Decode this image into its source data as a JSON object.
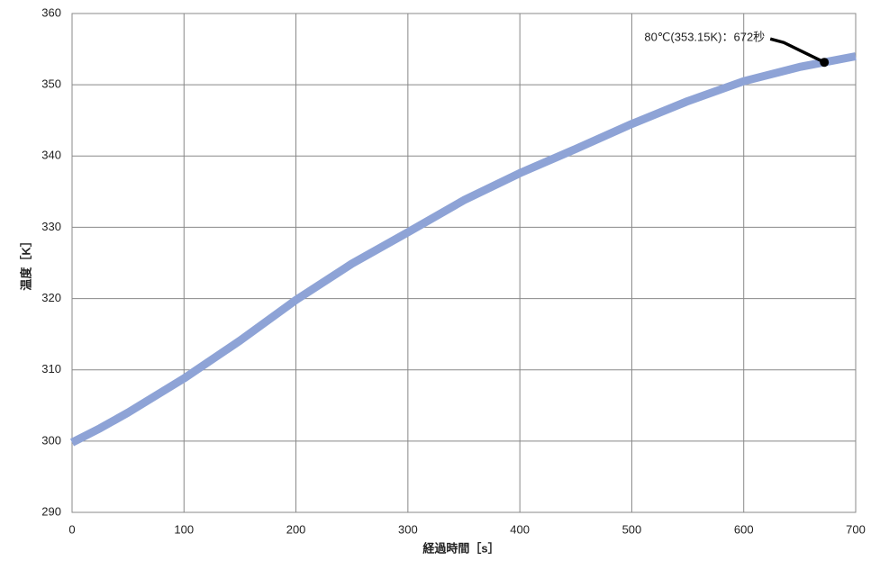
{
  "chart_data": {
    "type": "line",
    "x_label": "経過時間［s］",
    "y_label": "温度［K］",
    "x": [
      0,
      25,
      50,
      100,
      150,
      200,
      250,
      300,
      350,
      400,
      450,
      500,
      550,
      600,
      650,
      700
    ],
    "series": [
      {
        "name": "温度",
        "color": "#8ea3d6",
        "values": [
          299.8,
          301.8,
          304,
          308.8,
          314.1,
          319.8,
          324.9,
          329.3,
          333.8,
          337.6,
          341,
          344.5,
          347.7,
          350.5,
          352.5,
          354
        ]
      }
    ],
    "xlim": [
      0,
      700
    ],
    "xticks": [
      0,
      100,
      200,
      300,
      400,
      500,
      600,
      700
    ],
    "ylim": [
      290,
      360
    ],
    "yticks": [
      290,
      300,
      310,
      320,
      330,
      340,
      350,
      360
    ],
    "grid": true,
    "annotation": {
      "text": "80℃(353.15K)：672秒",
      "x": 672,
      "y": 353.15
    }
  }
}
